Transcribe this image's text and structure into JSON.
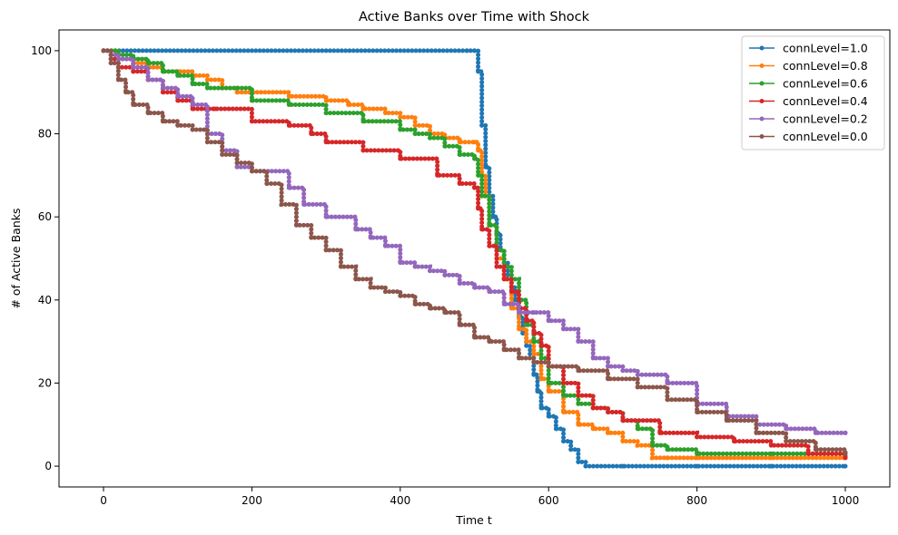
{
  "chart_data": {
    "type": "line",
    "title": "Active Banks over Time with Shock",
    "xlabel": "Time t",
    "ylabel": "# of Active Banks",
    "xlim": [
      -60,
      1060
    ],
    "ylim": [
      -5,
      105
    ],
    "xticks": [
      0,
      200,
      400,
      600,
      800,
      1000
    ],
    "yticks": [
      0,
      20,
      40,
      60,
      80,
      100
    ],
    "grid": false,
    "legend_position": "top-right",
    "series": [
      {
        "name": "connLevel=1.0",
        "color": "#1f77b4",
        "x": [
          0,
          490,
          500,
          505,
          510,
          515,
          520,
          525,
          530,
          535,
          540,
          545,
          550,
          555,
          560,
          565,
          570,
          575,
          580,
          585,
          590,
          600,
          610,
          620,
          630,
          640,
          650,
          700,
          800,
          900,
          1000
        ],
        "y": [
          100,
          100,
          100,
          95,
          82,
          72,
          65,
          60,
          56,
          52,
          49,
          46,
          43,
          40,
          36,
          32,
          29,
          27,
          22,
          18,
          14,
          12,
          9,
          6,
          4,
          1,
          0,
          0,
          0,
          0,
          0
        ]
      },
      {
        "name": "connLevel=0.8",
        "color": "#ff7f0e",
        "x": [
          0,
          20,
          40,
          60,
          80,
          100,
          120,
          140,
          160,
          180,
          200,
          250,
          300,
          330,
          350,
          380,
          400,
          420,
          440,
          460,
          480,
          500,
          505,
          510,
          515,
          520,
          530,
          540,
          550,
          560,
          570,
          580,
          590,
          600,
          620,
          640,
          660,
          680,
          700,
          720,
          740,
          760,
          800,
          900,
          1000
        ],
        "y": [
          100,
          98,
          97,
          96,
          95,
          95,
          94,
          93,
          91,
          90,
          90,
          89,
          88,
          87,
          86,
          85,
          84,
          82,
          80,
          79,
          78,
          78,
          76,
          70,
          65,
          58,
          50,
          45,
          38,
          33,
          30,
          27,
          21,
          18,
          13,
          10,
          9,
          8,
          6,
          5,
          2,
          2,
          2,
          2,
          2
        ]
      },
      {
        "name": "connLevel=0.6",
        "color": "#2ca02c",
        "x": [
          0,
          20,
          40,
          60,
          80,
          100,
          120,
          140,
          160,
          180,
          200,
          250,
          300,
          350,
          400,
          420,
          440,
          460,
          480,
          500,
          505,
          510,
          520,
          530,
          540,
          550,
          560,
          570,
          580,
          590,
          600,
          620,
          640,
          660,
          680,
          700,
          720,
          740,
          760,
          800,
          900,
          1000
        ],
        "y": [
          100,
          99,
          98,
          97,
          95,
          94,
          92,
          91,
          91,
          91,
          88,
          87,
          85,
          83,
          81,
          80,
          79,
          77,
          75,
          74,
          70,
          65,
          58,
          52,
          48,
          45,
          40,
          34,
          30,
          26,
          20,
          17,
          15,
          14,
          13,
          11,
          9,
          5,
          4,
          3,
          3,
          3
        ]
      },
      {
        "name": "connLevel=0.4",
        "color": "#d62728",
        "x": [
          0,
          10,
          20,
          40,
          60,
          80,
          100,
          120,
          150,
          200,
          250,
          280,
          300,
          350,
          400,
          450,
          480,
          500,
          505,
          510,
          520,
          530,
          540,
          550,
          560,
          570,
          580,
          590,
          600,
          620,
          640,
          660,
          680,
          700,
          750,
          800,
          850,
          900,
          950,
          1000
        ],
        "y": [
          100,
          98,
          96,
          95,
          93,
          90,
          88,
          86,
          86,
          83,
          82,
          80,
          78,
          76,
          74,
          70,
          68,
          67,
          62,
          57,
          53,
          48,
          45,
          42,
          38,
          35,
          32,
          29,
          24,
          20,
          17,
          14,
          13,
          11,
          8,
          7,
          6,
          5,
          3,
          2
        ]
      },
      {
        "name": "connLevel=0.2",
        "color": "#9467bd",
        "x": [
          0,
          10,
          20,
          40,
          60,
          80,
          100,
          120,
          140,
          160,
          180,
          200,
          250,
          270,
          300,
          340,
          360,
          380,
          400,
          420,
          440,
          460,
          480,
          500,
          520,
          540,
          560,
          580,
          600,
          620,
          640,
          660,
          680,
          700,
          720,
          760,
          800,
          840,
          880,
          920,
          960,
          1000
        ],
        "y": [
          100,
          99,
          98,
          96,
          93,
          91,
          89,
          87,
          80,
          76,
          72,
          71,
          67,
          63,
          60,
          57,
          55,
          53,
          49,
          48,
          47,
          46,
          44,
          43,
          42,
          39,
          37,
          37,
          35,
          33,
          30,
          26,
          24,
          23,
          22,
          20,
          15,
          12,
          10,
          9,
          8,
          8
        ]
      },
      {
        "name": "connLevel=0.0",
        "color": "#8c564b",
        "x": [
          0,
          10,
          20,
          30,
          40,
          60,
          80,
          100,
          120,
          140,
          160,
          180,
          200,
          220,
          240,
          260,
          280,
          300,
          320,
          340,
          360,
          380,
          400,
          420,
          440,
          460,
          480,
          500,
          520,
          540,
          560,
          580,
          600,
          640,
          680,
          720,
          760,
          800,
          840,
          880,
          920,
          960,
          1000
        ],
        "y": [
          100,
          97,
          93,
          90,
          87,
          85,
          83,
          82,
          81,
          78,
          75,
          73,
          71,
          68,
          63,
          58,
          55,
          52,
          48,
          45,
          43,
          42,
          41,
          39,
          38,
          37,
          34,
          31,
          30,
          28,
          26,
          25,
          24,
          23,
          21,
          19,
          16,
          13,
          11,
          8,
          6,
          4,
          3
        ]
      }
    ]
  }
}
